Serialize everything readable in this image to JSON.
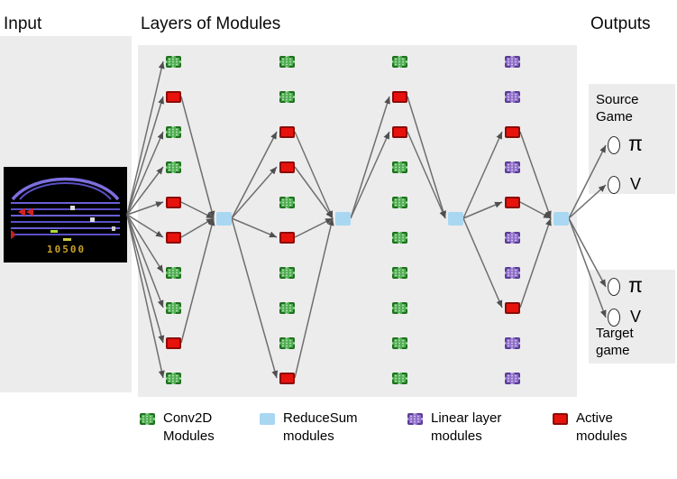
{
  "headers": {
    "input": "Input",
    "layers": "Layers of Modules",
    "outputs": "Outputs"
  },
  "game": {
    "score": "10500"
  },
  "diagram": {
    "reduce_count": 4,
    "columns": [
      {
        "base": "conv",
        "modules": [
          "conv",
          "active",
          "conv",
          "conv",
          "active",
          "active",
          "conv",
          "conv",
          "active",
          "conv"
        ]
      },
      {
        "base": "conv",
        "modules": [
          "conv",
          "conv",
          "active",
          "active",
          "conv",
          "active",
          "conv",
          "conv",
          "conv",
          "active"
        ]
      },
      {
        "base": "conv",
        "modules": [
          "conv",
          "active",
          "active",
          "conv",
          "conv",
          "conv",
          "conv",
          "conv",
          "conv",
          "conv"
        ]
      },
      {
        "base": "linear",
        "modules": [
          "linear",
          "linear",
          "active",
          "linear",
          "active",
          "linear",
          "linear",
          "active",
          "linear",
          "linear"
        ]
      }
    ]
  },
  "outputs": {
    "source": {
      "title_lines": [
        "Source",
        "Game"
      ],
      "heads": [
        "π",
        "V"
      ]
    },
    "target": {
      "title_lines": [
        "Target",
        "game"
      ],
      "heads": [
        "π",
        "V"
      ]
    }
  },
  "legend": [
    {
      "type": "conv",
      "lines": [
        "Conv2D",
        "Modules"
      ]
    },
    {
      "type": "reduce",
      "lines": [
        "ReduceSum",
        "modules"
      ]
    },
    {
      "type": "linear",
      "lines": [
        "Linear layer",
        "modules"
      ]
    },
    {
      "type": "active",
      "lines": [
        "Active",
        "modules"
      ]
    }
  ],
  "colors": {
    "conv": "#4fae51",
    "reduce": "#a9d7f2",
    "linear": "#8f6fc9",
    "active": "#e8120c",
    "arrow": "#6e6e6e"
  }
}
